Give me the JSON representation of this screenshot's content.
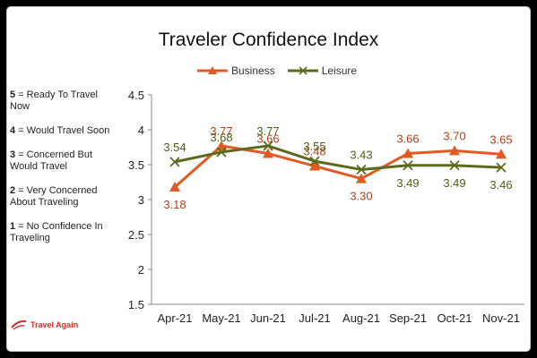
{
  "chart_data": {
    "type": "line",
    "title": "Traveler Confidence Index",
    "categories": [
      "Apr-21",
      "May-21",
      "Jun-21",
      "Jul-21",
      "Aug-21",
      "Sep-21",
      "Oct-21",
      "Nov-21"
    ],
    "series": [
      {
        "name": "Business",
        "values": [
          3.18,
          3.77,
          3.66,
          3.48,
          3.3,
          3.66,
          3.7,
          3.65
        ],
        "color": "#e05a23",
        "marker": "triangle"
      },
      {
        "name": "Leisure",
        "values": [
          3.54,
          3.68,
          3.77,
          3.55,
          3.43,
          3.49,
          3.49,
          3.46
        ],
        "color": "#5a6b1e",
        "marker": "x"
      }
    ],
    "ylim": [
      1.5,
      4.5
    ],
    "yticks": [
      "1.5",
      "2",
      "2.5",
      "3",
      "3.5",
      "4",
      "4.5"
    ],
    "grid": false,
    "legend": "top"
  },
  "scale": [
    {
      "num": "5",
      "text": " = Ready To Travel Now"
    },
    {
      "num": "4",
      "text": " = Would Travel Soon"
    },
    {
      "num": "3",
      "text": " = Concerned But Would Travel"
    },
    {
      "num": "2",
      "text": " = Very Concerned About Traveling"
    },
    {
      "num": "1",
      "text": " = No Confidence In Traveling"
    }
  ],
  "logo": {
    "text": "Travel Again",
    "icon": "plane-swoosh-icon",
    "color": "#c8302a"
  }
}
